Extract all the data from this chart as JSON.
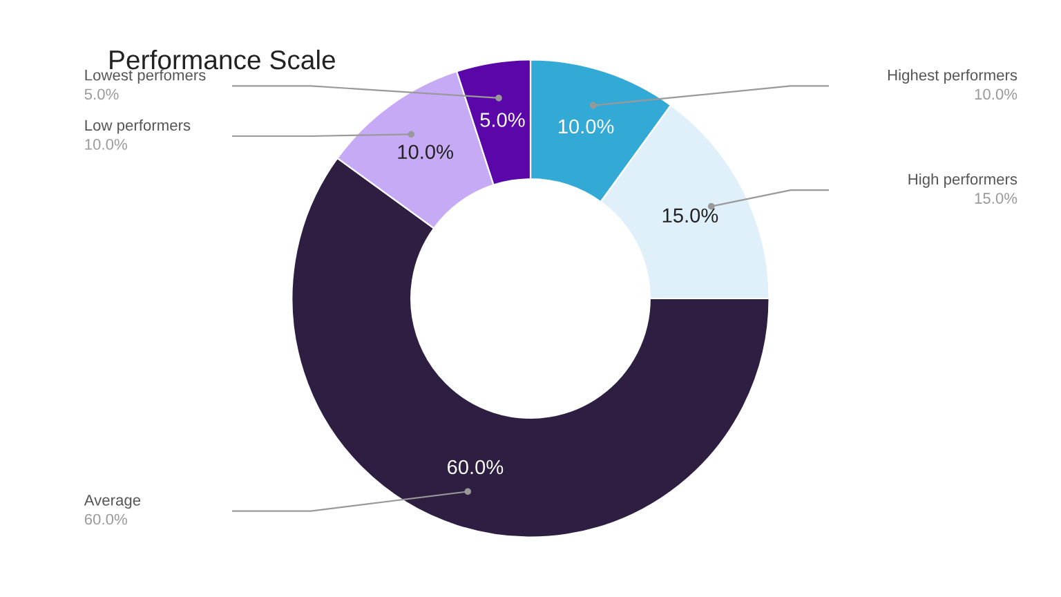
{
  "chart_data": {
    "type": "donut",
    "title": "Performance Scale",
    "categories": [
      "Highest performers",
      "High performers",
      "Average",
      "Low performers",
      "Lowest perfomers"
    ],
    "values": [
      10,
      15,
      60,
      10,
      5
    ],
    "colors": [
      "#33a9d6",
      "#dff0fb",
      "#2e1e42",
      "#c7aaf5",
      "#5a06a8"
    ],
    "value_labels": [
      "10.0%",
      "15.0%",
      "60.0%",
      "10.0%",
      "5.0%"
    ],
    "legend": false
  }
}
